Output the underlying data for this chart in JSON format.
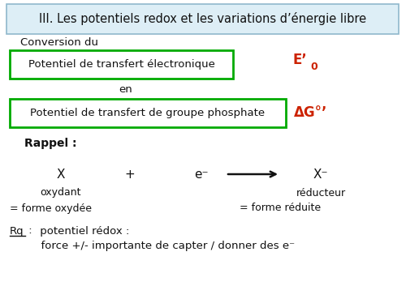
{
  "bg_color": "#ffffff",
  "title_text": "III. Les potentiels redox et les variations d’énergie libre",
  "title_box_facecolor": "#ddeef6",
  "title_box_edgecolor": "#90b8cc",
  "green_color": "#00aa00",
  "red_color": "#cc2200",
  "black_color": "#111111",
  "conversion_text": "Conversion du",
  "box1_text": "Potentiel de transfert électronique",
  "e0_main": "E’",
  "e0_sub": "0",
  "en_text": "en",
  "box2_text": "Potentiel de transfert de groupe phosphate",
  "dg_text": "ΔG°’",
  "rappel_text": "Rappel :",
  "X_text": "X",
  "plus_text": "+",
  "eminus_text": "e⁻",
  "xminus_text": "X⁻",
  "oxydant_text": "oxydant",
  "reducteur_text": "réducteur",
  "forme_ox_text": "= forme oxydée",
  "forme_red_text": "= forme réduite",
  "rq_label": "Rq",
  "rq_colon": " :",
  "rq_line1": " potentiel rédox :",
  "rq_line2": "      force +/- importante de capter / donner des e⁻"
}
